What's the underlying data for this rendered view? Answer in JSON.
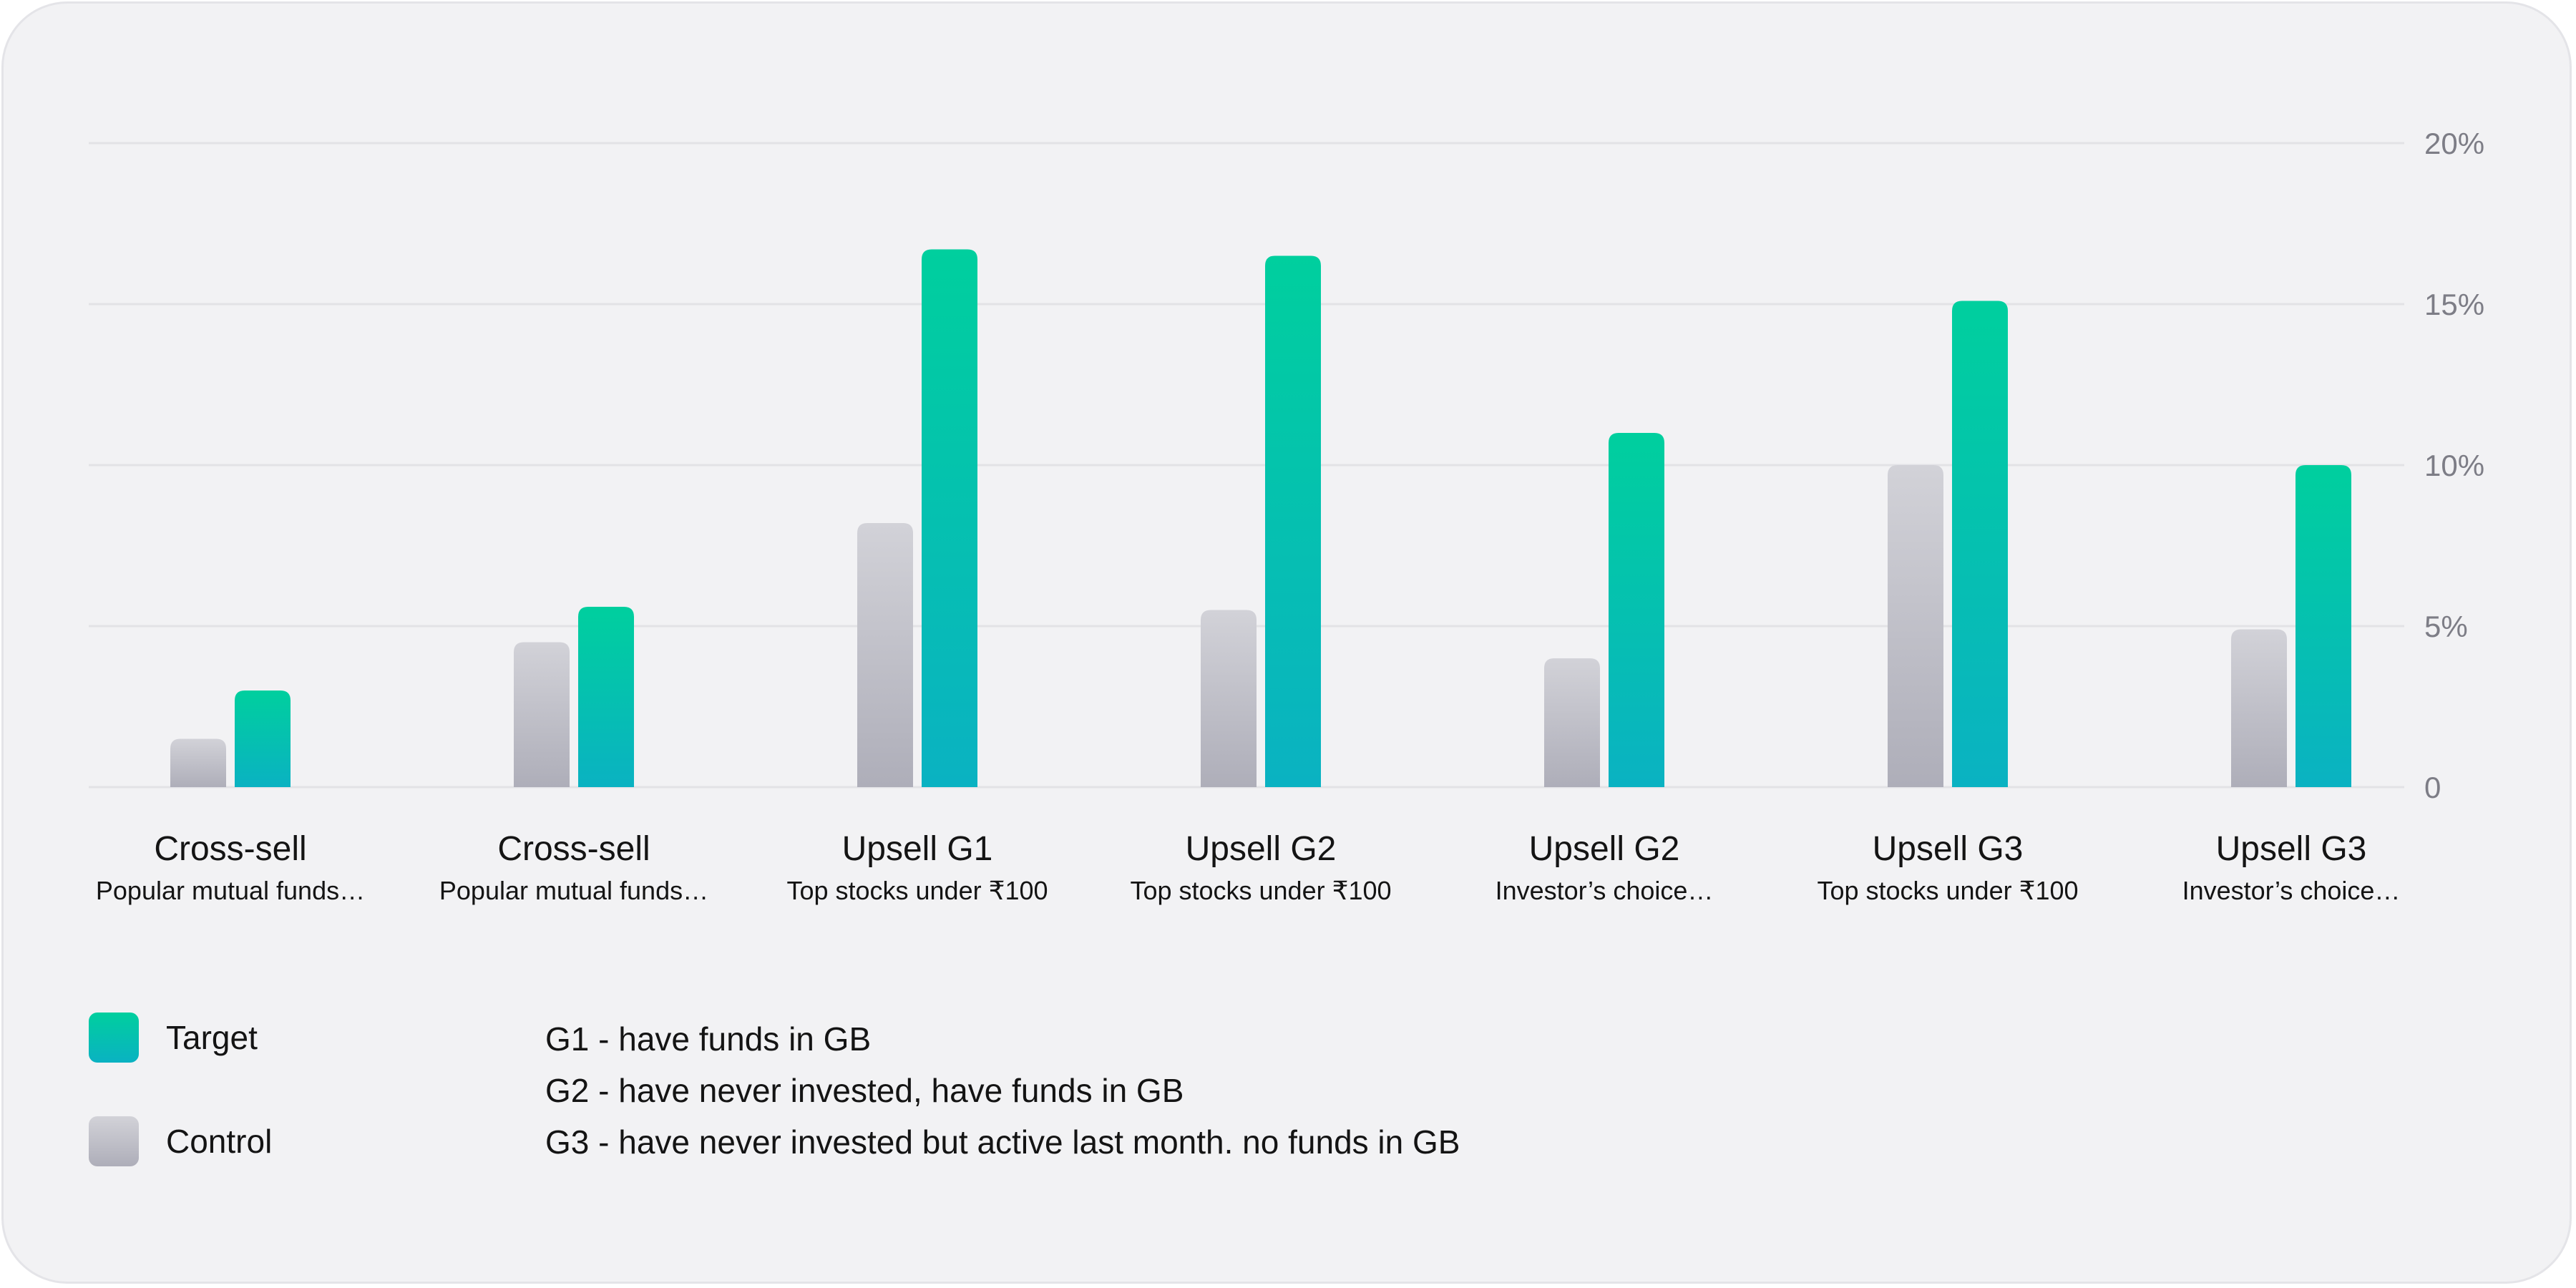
{
  "chart_data": {
    "type": "bar",
    "categories": [
      {
        "name": "Cross-sell",
        "sub": "Popular mutual funds…"
      },
      {
        "name": "Cross-sell",
        "sub": "Popular mutual funds…"
      },
      {
        "name": "Upsell G1",
        "sub": "Top stocks under ₹100"
      },
      {
        "name": "Upsell G2",
        "sub": "Top stocks under ₹100"
      },
      {
        "name": "Upsell G2",
        "sub": "Investor’s choice…"
      },
      {
        "name": "Upsell G3",
        "sub": "Top stocks under ₹100"
      },
      {
        "name": "Upsell G3",
        "sub": "Investor’s choice…"
      }
    ],
    "series": [
      {
        "name": "Control",
        "values": [
          1.5,
          4.5,
          8.2,
          5.5,
          4.0,
          10.0,
          4.9
        ]
      },
      {
        "name": "Target",
        "values": [
          3.0,
          5.6,
          16.7,
          16.5,
          11.0,
          15.1,
          10.0
        ]
      }
    ],
    "ylim": [
      0,
      20
    ],
    "yticks": [
      0,
      5,
      10,
      15,
      20
    ],
    "ytick_labels": [
      "0",
      "5%",
      "10%",
      "15%",
      "20%"
    ],
    "grid": true,
    "y_axis_position": "right",
    "legend_placement": "bottom-left",
    "colors": {
      "target_top": "#00cf9e",
      "target_bottom": "#0ab2c2",
      "control_top": "#d2d2d8",
      "control_bottom": "#aeaeb9",
      "grid": "#e2e2e6",
      "tick_text": "#7d7d86",
      "label_text": "#141414"
    }
  },
  "legend": {
    "items": [
      {
        "label": "Target"
      },
      {
        "label": "Control"
      }
    ]
  },
  "notes": [
    "G1 - have funds in GB",
    "G2 - have never invested, have funds in GB",
    "G3 - have never invested but active last month. no funds in GB"
  ]
}
